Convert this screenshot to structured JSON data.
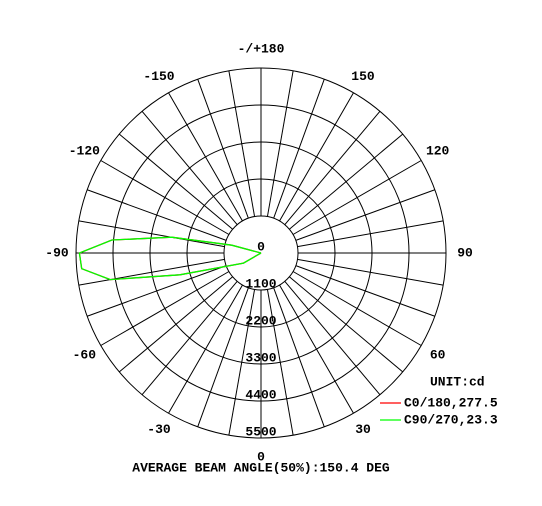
{
  "chart_data": {
    "type": "polar",
    "annotation": "AVERAGE BEAM ANGLE(50%):150.4 DEG",
    "unit": "UNIT:cd",
    "rlim": [
      0,
      5500
    ],
    "rticks": [
      0,
      1100,
      2200,
      3300,
      4400,
      5500
    ],
    "angle_ticks": [
      0,
      30,
      60,
      90,
      120,
      150,
      {
        "value": 180,
        "label": "-/+180"
      },
      -150,
      -120,
      -90,
      -60,
      -30
    ],
    "x": [
      -120,
      -105,
      -100,
      -95,
      -90,
      -85,
      -80,
      -75,
      -60,
      0
    ],
    "series": [
      {
        "name": "C0/180,277.5",
        "color": "#ff0000",
        "values": [
          0,
          900,
          2700,
          4450,
          5400,
          5350,
          4550,
          2500,
          600,
          0
        ]
      },
      {
        "name": "C90/270,23.3",
        "color": "#00ff00",
        "values": [
          0,
          900,
          2700,
          4450,
          5400,
          5350,
          4550,
          2500,
          600,
          0
        ]
      }
    ]
  }
}
